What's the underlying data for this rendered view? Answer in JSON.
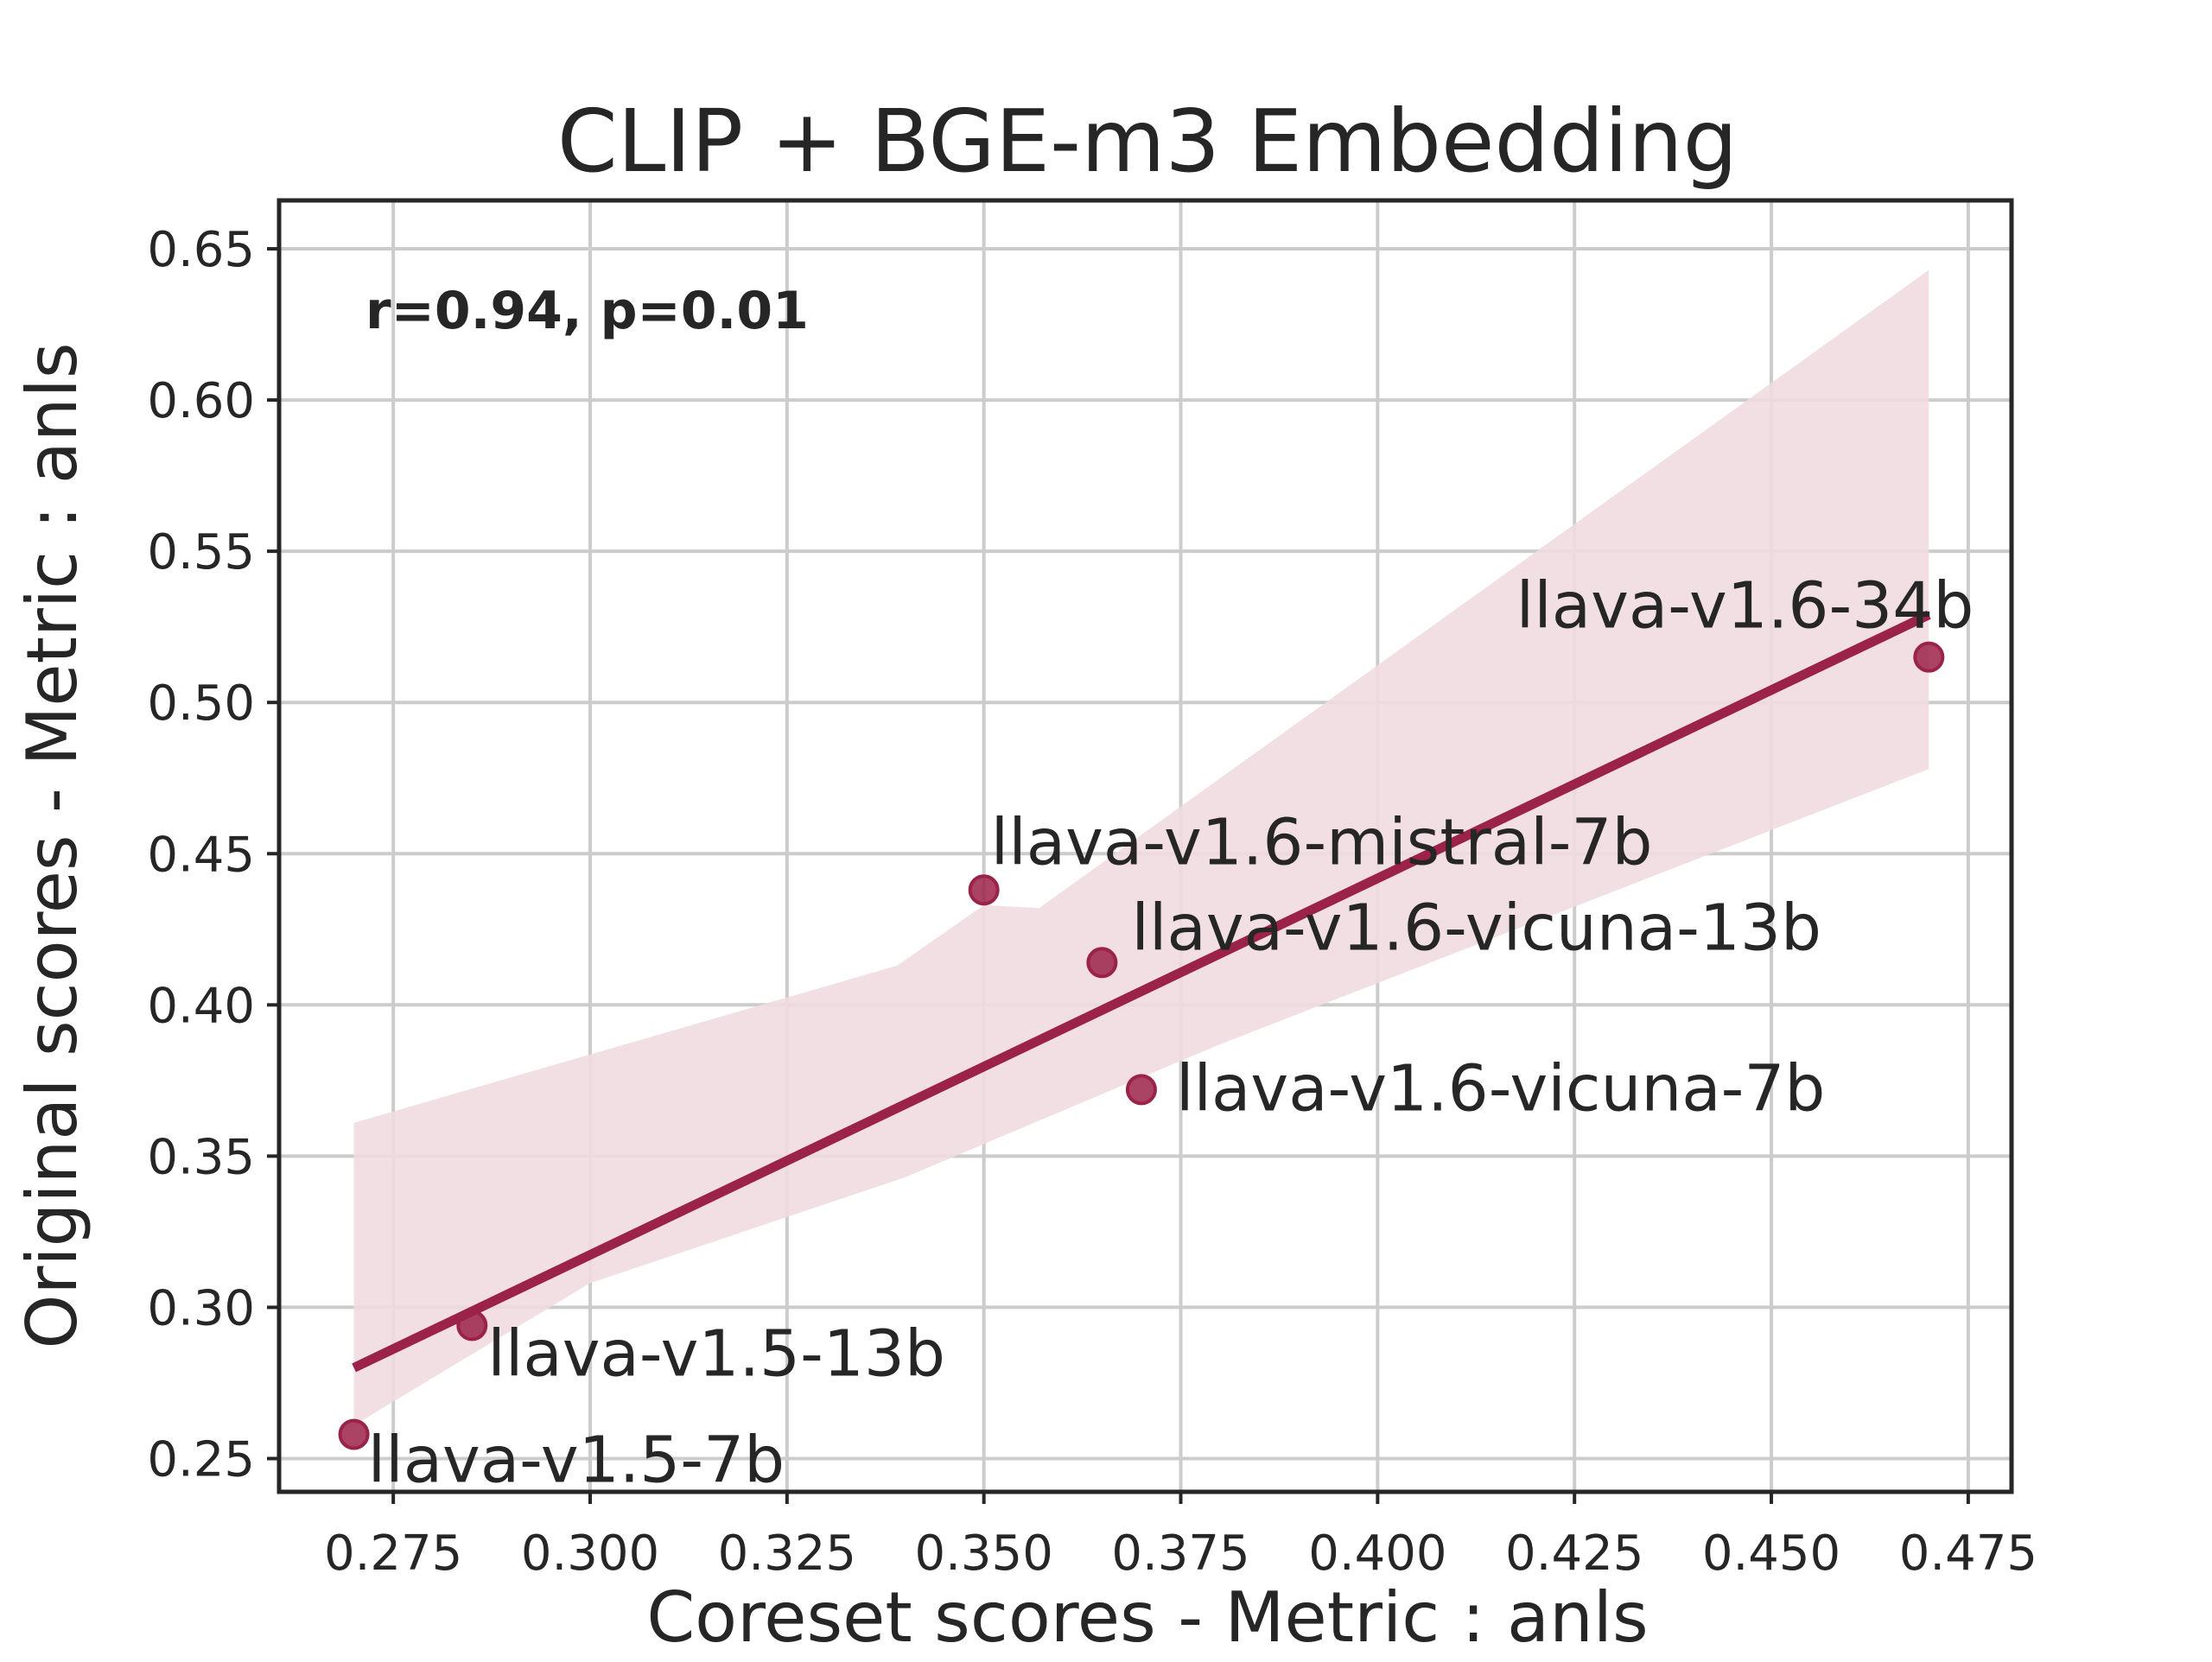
{
  "chart_data": {
    "type": "scatter",
    "title": "CLIP + BGE-m3 Embedding",
    "xlabel": "Coreset scores - Metric : anls",
    "ylabel": "Original scores - Metric : anls",
    "annotation": "r=0.94, p=0.01",
    "xlim": [
      0.2605,
      0.4805
    ],
    "ylim": [
      0.239,
      0.666
    ],
    "xticks": [
      "0.275",
      "0.300",
      "0.325",
      "0.350",
      "0.375",
      "0.400",
      "0.425",
      "0.450",
      "0.475"
    ],
    "yticks": [
      "0.25",
      "0.30",
      "0.35",
      "0.40",
      "0.45",
      "0.50",
      "0.55",
      "0.60",
      "0.65"
    ],
    "grid": true,
    "colors": {
      "point": "#9b2249",
      "line": "#9b2249",
      "band": "#f0dbe1"
    },
    "points": [
      {
        "label": "llava-v1.5-7b",
        "x": 0.27,
        "y": 0.258
      },
      {
        "label": "llava-v1.5-13b",
        "x": 0.285,
        "y": 0.294
      },
      {
        "label": "llava-v1.6-mistral-7b",
        "x": 0.35,
        "y": 0.438
      },
      {
        "label": "llava-v1.6-vicuna-13b",
        "x": 0.365,
        "y": 0.414
      },
      {
        "label": "llava-v1.6-vicuna-7b",
        "x": 0.37,
        "y": 0.372
      },
      {
        "label": "llava-v1.6-34b",
        "x": 0.47,
        "y": 0.515
      }
    ],
    "regression_line": {
      "x": [
        0.27,
        0.47
      ],
      "y": [
        0.28,
        0.529
      ]
    },
    "confidence_band": {
      "upper": [
        [
          0.27,
          0.361
        ],
        [
          0.339,
          0.413
        ],
        [
          0.35,
          0.433
        ],
        [
          0.357,
          0.432
        ],
        [
          0.47,
          0.643
        ]
      ],
      "lower": [
        [
          0.27,
          0.261
        ],
        [
          0.3,
          0.308
        ],
        [
          0.34,
          0.343
        ],
        [
          0.38,
          0.387
        ],
        [
          0.47,
          0.478
        ]
      ]
    }
  }
}
